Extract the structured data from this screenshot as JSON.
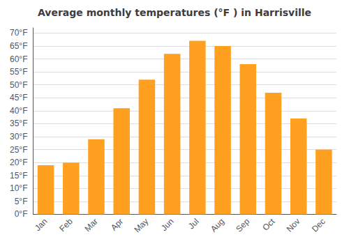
{
  "chart_data": {
    "type": "bar",
    "title": "Average monthly temperatures (°F ) in Harrisville",
    "categories": [
      "Jan",
      "Feb",
      "Mar",
      "Apr",
      "May",
      "Jun",
      "Jul",
      "Aug",
      "Sep",
      "Oct",
      "Nov",
      "Dec"
    ],
    "values": [
      19,
      20,
      29,
      41,
      52,
      62,
      67,
      65,
      58,
      47,
      37,
      25
    ],
    "color": "#FFA020",
    "ylim": [
      0,
      72
    ],
    "yticks": [
      {
        "value": 0,
        "label": "0°F"
      },
      {
        "value": 5,
        "label": "5°F"
      },
      {
        "value": 10,
        "label": "10°F"
      },
      {
        "value": 15,
        "label": "15°F"
      },
      {
        "value": 20,
        "label": "20°F"
      },
      {
        "value": 25,
        "label": "25°F"
      },
      {
        "value": 30,
        "label": "30°F"
      },
      {
        "value": 35,
        "label": "35°F"
      },
      {
        "value": 40,
        "label": "40°F"
      },
      {
        "value": 45,
        "label": "45°F"
      },
      {
        "value": 50,
        "label": "50°F"
      },
      {
        "value": 55,
        "label": "55°F"
      },
      {
        "value": 60,
        "label": "60°F"
      },
      {
        "value": 65,
        "label": "65°F"
      },
      {
        "value": 70,
        "label": "70°F"
      }
    ],
    "grid": true
  }
}
